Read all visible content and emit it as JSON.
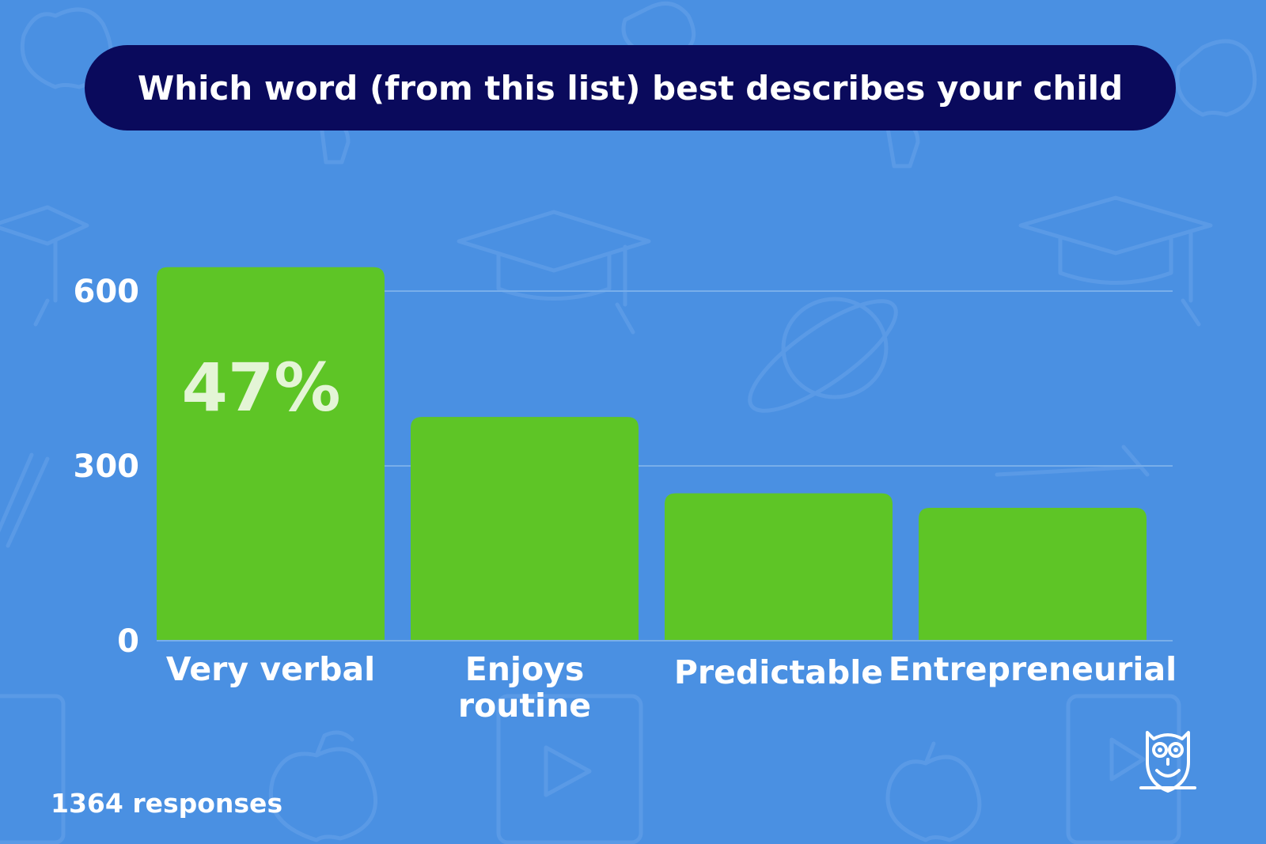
{
  "colors": {
    "background": "#4a90e2",
    "title_bg": "#0a0a5c",
    "bar": "#5ec526",
    "grid": "#78aeea",
    "bar_label": "#e4f5d6"
  },
  "title": "Which word (from this list) best describes your child",
  "footer": {
    "responses": "1364 responses"
  },
  "logo": {
    "icon": "owl-icon"
  },
  "chart_data": {
    "type": "bar",
    "title": "Which word (from this list) best describes your child",
    "xlabel": "",
    "ylabel": "",
    "categories": [
      "Very verbal",
      "Enjoys routine",
      "Predictable",
      "Entrepreneurial"
    ],
    "category_lines": [
      [
        "Very verbal"
      ],
      [
        "Enjoys",
        "routine"
      ],
      [
        "Predictable"
      ],
      [
        "Entrepreneurial"
      ]
    ],
    "values": [
      641,
      384,
      253,
      228
    ],
    "yticks": [
      0,
      300,
      600
    ],
    "ylim": [
      0,
      780
    ],
    "grid": true,
    "bar_labels": [
      "47%",
      "",
      "",
      ""
    ]
  }
}
